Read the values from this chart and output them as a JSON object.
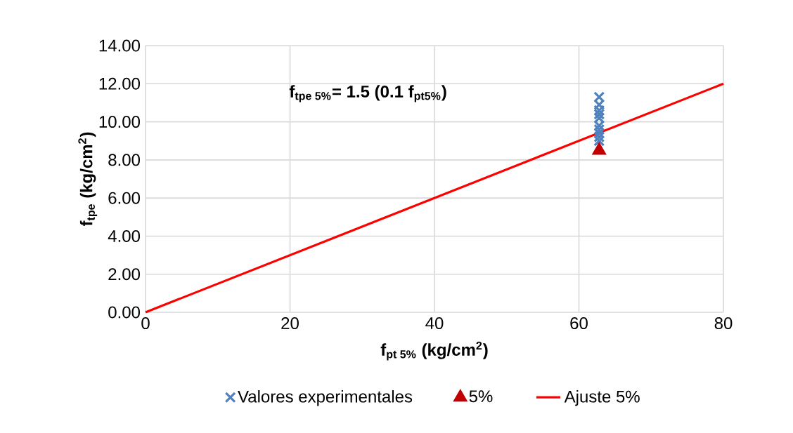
{
  "chart_data": {
    "type": "scatter",
    "xlabel": "f$_{pt 5%}$ (kg/cm$^{2}$)",
    "ylabel": "f$_{tpe}$ (kg/cm$^{2}$)",
    "annotations": [
      "f$_{tpe 5%}$= 1.5 (0.1 f$_{pt5%}$)"
    ],
    "xlim": [
      0,
      80
    ],
    "xticks": [
      0,
      20,
      40,
      60,
      80
    ],
    "ylim": [
      0,
      14
    ],
    "yticks": [
      {
        "value": 0,
        "label": "0.00"
      },
      {
        "value": 2,
        "label": "2.00"
      },
      {
        "value": 4,
        "label": "4.00"
      },
      {
        "value": 6,
        "label": "6.00"
      },
      {
        "value": 8,
        "label": "8.00"
      },
      {
        "value": 10,
        "label": "10.00"
      },
      {
        "value": 12,
        "label": "12.00"
      },
      {
        "value": 14,
        "label": "14.00"
      }
    ],
    "grid": true,
    "legend": "bottom",
    "series": [
      {
        "name": "Valores experimentales",
        "marker": "cross",
        "color": "#4f81bd",
        "x": [
          62.8,
          62.8,
          62.8,
          62.8,
          62.8,
          62.8,
          62.8,
          62.8,
          62.8,
          62.8
        ],
        "values": [
          11.3,
          10.9,
          10.6,
          10.4,
          10.2,
          9.8,
          9.6,
          9.4,
          9.2,
          9.0
        ]
      },
      {
        "name": "5%",
        "marker": "triangle",
        "color": "#c00000",
        "x": [
          62.8
        ],
        "values": [
          8.5
        ]
      },
      {
        "name": "Ajuste 5%",
        "type": "line",
        "marker": "none",
        "line_style": "solid",
        "color": "#ff0000",
        "x": [
          0,
          80
        ],
        "values": [
          0,
          12
        ]
      }
    ]
  }
}
